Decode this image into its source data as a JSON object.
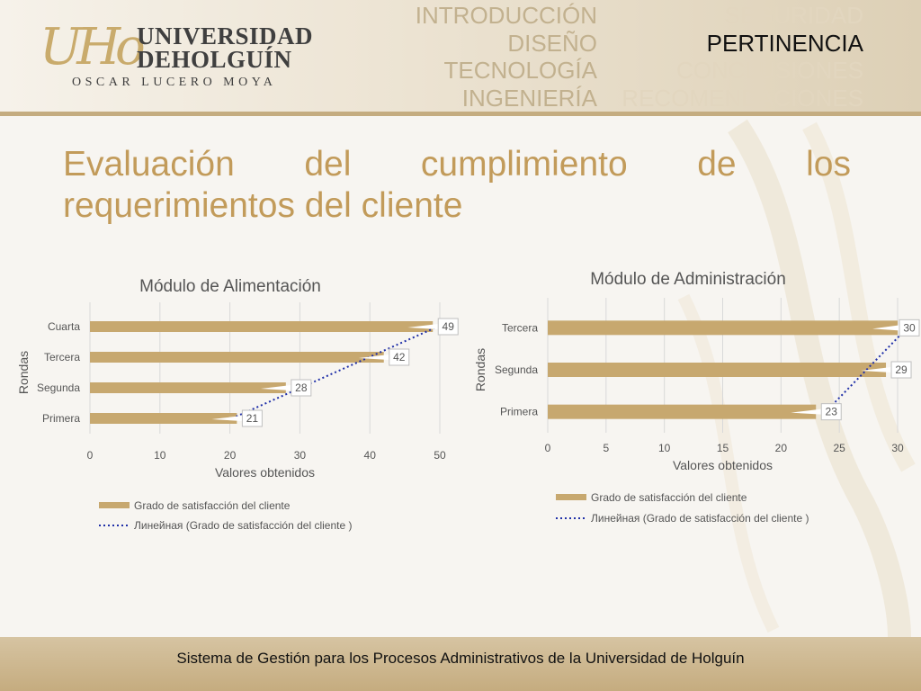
{
  "colors": {
    "bar": "#c7a86f",
    "trend": "#1f2fa8",
    "title": "#c29b5a",
    "nav_inactive": "#c2b18f",
    "nav_active": "#111111",
    "footer": "#c5ac7f"
  },
  "logo": {
    "mark": "UHo",
    "line1": "UNIVERSIDAD",
    "line2": "DEHOLGUÍN",
    "sub": "OSCAR LUCERO MOYA"
  },
  "nav": {
    "left": [
      "INTRODUCCIÓN",
      "DISEÑO",
      "TECNOLOGÍA",
      "INGENIERÍA"
    ],
    "right": [
      "SEGURIDAD",
      "PERTINENCIA",
      "CONCLUSIONES",
      "RECOMENDACIONES"
    ],
    "active": "PERTINENCIA"
  },
  "slide": {
    "title": "Evaluación del cumplimiento de los requerimientos del cliente"
  },
  "chart_data": [
    {
      "type": "bar",
      "orientation": "horizontal",
      "title": "Módulo de Alimentación",
      "xlabel": "Valores obtenidos",
      "ylabel": "Rondas",
      "categories": [
        "Primera",
        "Segunda",
        "Tercera",
        "Cuarta"
      ],
      "series": [
        {
          "name": "Grado de satisfacción del cliente",
          "values": [
            21,
            28,
            42,
            49
          ]
        }
      ],
      "trendline": {
        "name": "Линейная (Grado de satisfacción del cliente )",
        "type": "linear"
      },
      "xlim": [
        0,
        50
      ],
      "xticks": [
        0,
        10,
        20,
        30,
        40,
        50
      ],
      "grid": true,
      "legend": "bottom"
    },
    {
      "type": "bar",
      "orientation": "horizontal",
      "title": "Módulo de Administración",
      "xlabel": "Valores obtenidos",
      "ylabel": "Rondas",
      "categories": [
        "Primera",
        "Segunda",
        "Tercera"
      ],
      "series": [
        {
          "name": "Grado de satisfacción del cliente",
          "values": [
            23,
            29,
            30
          ]
        }
      ],
      "trendline": {
        "name": "Линейная (Grado de satisfacción del cliente )",
        "type": "linear"
      },
      "xlim": [
        0,
        30
      ],
      "xticks": [
        0,
        5,
        10,
        15,
        20,
        25,
        30
      ],
      "grid": true,
      "legend": "bottom"
    }
  ],
  "footer": {
    "text": "Sistema de Gestión para los Procesos Administrativos de la Universidad de Holguín"
  }
}
